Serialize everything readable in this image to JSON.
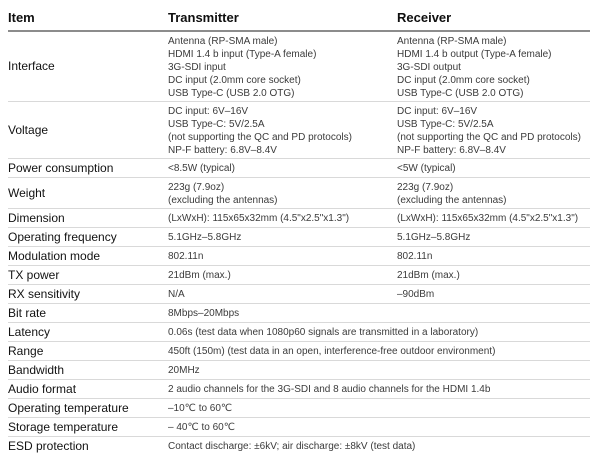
{
  "table": {
    "header": {
      "item": "Item",
      "transmitter": "Transmitter",
      "receiver": "Receiver"
    },
    "rows": [
      {
        "label": "Interface",
        "transmitter": [
          "Antenna (RP-SMA male)",
          "HDMI 1.4 b input (Type-A female)",
          "3G-SDI input",
          "DC input (2.0mm core socket)",
          "USB Type-C (USB 2.0 OTG)"
        ],
        "receiver": [
          "Antenna (RP-SMA male)",
          "HDMI 1.4 b output (Type-A female)",
          "3G-SDI output",
          "DC input (2.0mm core socket)",
          "USB Type-C (USB 2.0 OTG)"
        ]
      },
      {
        "label": "Voltage",
        "transmitter": [
          "DC input: 6V–16V",
          "USB Type-C: 5V/2.5A",
          "(not supporting the QC and PD protocols)",
          "NP-F battery: 6.8V–8.4V"
        ],
        "receiver": [
          "DC input: 6V–16V",
          "USB Type-C: 5V/2.5A",
          "(not supporting the QC and PD protocols)",
          "NP-F battery: 6.8V–8.4V"
        ]
      },
      {
        "label": "Power consumption",
        "transmitter": [
          "<8.5W (typical)"
        ],
        "receiver": [
          "<5W (typical)"
        ]
      },
      {
        "label": "Weight",
        "transmitter": [
          "223g (7.9oz)",
          "(excluding the antennas)"
        ],
        "receiver": [
          "223g (7.9oz)",
          "(excluding the antennas)"
        ]
      },
      {
        "label": "Dimension",
        "transmitter": [
          "(LxWxH): 115x65x32mm (4.5\"x2.5\"x1.3\")"
        ],
        "receiver": [
          "(LxWxH): 115x65x32mm (4.5\"x2.5\"x1.3\")"
        ]
      },
      {
        "label": "Operating frequency",
        "transmitter": [
          "5.1GHz–5.8GHz"
        ],
        "receiver": [
          "5.1GHz–5.8GHz"
        ]
      },
      {
        "label": "Modulation mode",
        "transmitter": [
          "802.11n"
        ],
        "receiver": [
          "802.11n"
        ]
      },
      {
        "label": "TX power",
        "transmitter": [
          "21dBm (max.)"
        ],
        "receiver": [
          "21dBm (max.)"
        ]
      },
      {
        "label": "RX sensitivity",
        "transmitter": [
          "N/A"
        ],
        "receiver": [
          "–90dBm"
        ]
      },
      {
        "label": "Bit rate",
        "span": [
          "8Mbps–20Mbps"
        ]
      },
      {
        "label": "Latency",
        "span": [
          "0.06s (test data when 1080p60 signals are transmitted in a laboratory)"
        ]
      },
      {
        "label": "Range",
        "span": [
          "450ft (150m) (test data in an open, interference-free outdoor environment)"
        ]
      },
      {
        "label": "Bandwidth",
        "span": [
          "20MHz"
        ]
      },
      {
        "label": "Audio format",
        "span": [
          "2 audio channels for the 3G-SDI and 8 audio channels for the HDMI 1.4b"
        ]
      },
      {
        "label": "Operating temperature",
        "span": [
          "–10℃ to 60℃"
        ]
      },
      {
        "label": "Storage temperature",
        "span": [
          "– 40℃ to 60℃"
        ]
      },
      {
        "label": "ESD protection",
        "span": [
          "Contact discharge: ±6kV; air discharge: ±8kV (test data)"
        ]
      }
    ]
  }
}
